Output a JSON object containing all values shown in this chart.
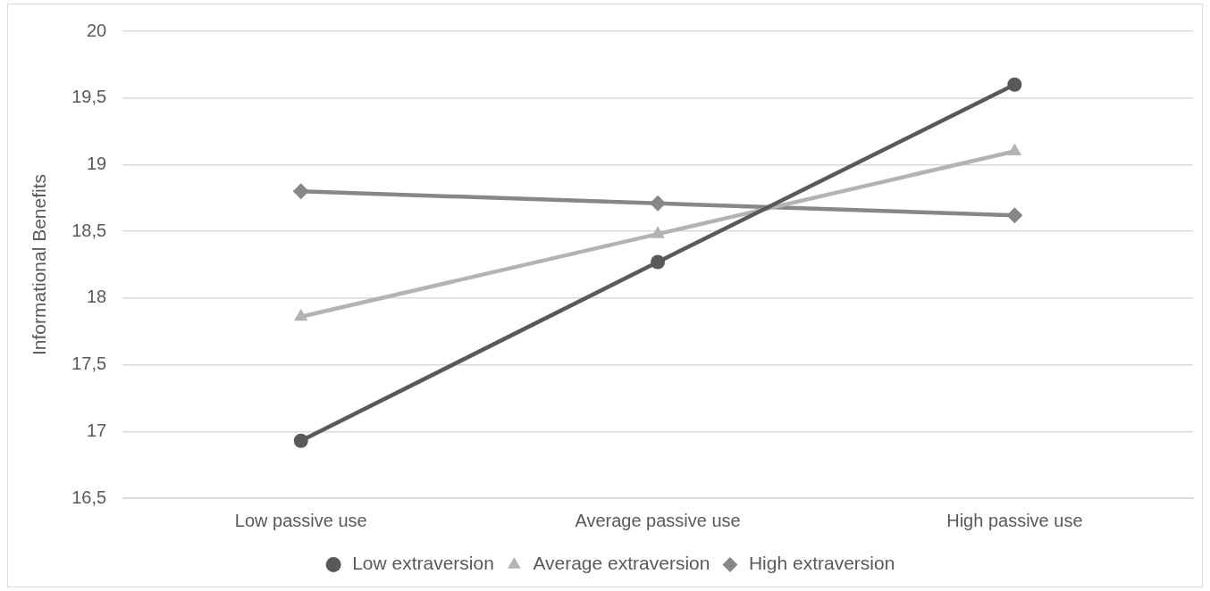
{
  "chart_data": {
    "type": "line",
    "ylabel": "Informational Benefits",
    "categories": [
      "Low passive use",
      "Average passive use",
      "High passive use"
    ],
    "series": [
      {
        "name": "Low extraversion",
        "color": "#595959",
        "marker": "circle",
        "values": [
          16.93,
          18.27,
          19.6
        ]
      },
      {
        "name": "Average extraversion",
        "color": "#b3b3b3",
        "marker": "triangle",
        "values": [
          17.86,
          18.48,
          19.1
        ]
      },
      {
        "name": "High extraversion",
        "color": "#878787",
        "marker": "diamond",
        "values": [
          18.8,
          18.71,
          18.62
        ]
      }
    ],
    "ylim": [
      16.5,
      20
    ],
    "yticks": [
      {
        "value": 16.5,
        "label": "16,5"
      },
      {
        "value": 17,
        "label": "17"
      },
      {
        "value": 17.5,
        "label": "17,5"
      },
      {
        "value": 18,
        "label": "18"
      },
      {
        "value": 18.5,
        "label": "18,5"
      },
      {
        "value": 19,
        "label": "19"
      },
      {
        "value": 19.5,
        "label": "19,5"
      },
      {
        "value": 20,
        "label": "20"
      }
    ],
    "grid": "y",
    "legend": "bottom",
    "line_style": "solid"
  }
}
